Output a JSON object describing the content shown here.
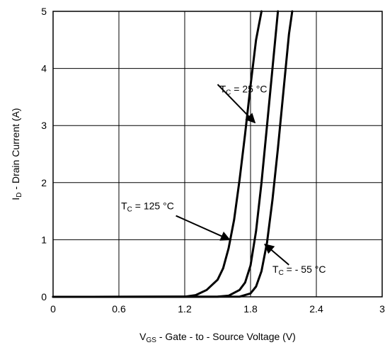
{
  "chart_data": {
    "type": "line",
    "xlim": [
      0,
      3
    ],
    "ylim": [
      0,
      5
    ],
    "x_ticks": [
      "0",
      "0.6",
      "1.2",
      "1.8",
      "2.4",
      "3"
    ],
    "y_ticks": [
      "0",
      "1",
      "2",
      "3",
      "4",
      "5"
    ],
    "grid": true,
    "xlabel": {
      "main": "V",
      "sub": "GS",
      "rest": " - Gate - to - Source Voltage (V)"
    },
    "ylabel": {
      "main": "I",
      "sub": "D",
      "rest": " - Drain Current (A)"
    },
    "series": [
      {
        "x": [
          0,
          1.2,
          1.3,
          1.4,
          1.5,
          1.55,
          1.6,
          1.65,
          1.7,
          1.75,
          1.8,
          1.85,
          1.9
        ],
        "y": [
          0,
          0.003,
          0.03,
          0.12,
          0.3,
          0.5,
          0.85,
          1.35,
          2.05,
          2.85,
          3.7,
          4.5,
          5.0
        ]
      },
      {
        "x": [
          0,
          1.5,
          1.6,
          1.7,
          1.75,
          1.8,
          1.85,
          1.9,
          1.95,
          2.0,
          2.05
        ],
        "y": [
          0,
          0.003,
          0.02,
          0.12,
          0.25,
          0.55,
          1.15,
          2.0,
          3.0,
          4.0,
          5.0
        ]
      },
      {
        "x": [
          0,
          1.7,
          1.8,
          1.85,
          1.9,
          1.95,
          2.0,
          2.05,
          2.1,
          2.15,
          2.18
        ],
        "y": [
          0,
          0.003,
          0.06,
          0.18,
          0.45,
          0.95,
          1.7,
          2.6,
          3.6,
          4.6,
          5.0
        ]
      }
    ],
    "annotations": [
      {
        "main": "T",
        "sub": "C",
        "rest": " = 25 °C",
        "text_at": [
          1.52,
          3.58
        ],
        "arrow_from": [
          1.5,
          3.72
        ],
        "arrow_to": [
          1.84,
          3.05
        ]
      },
      {
        "main": "T",
        "sub": "C",
        "rest": " = 125 °C",
        "text_at": [
          0.62,
          1.53
        ],
        "arrow_from": [
          1.12,
          1.42
        ],
        "arrow_to": [
          1.61,
          1.0
        ]
      },
      {
        "main": "T",
        "sub": "C",
        "rest": " = - 55 °C",
        "text_at": [
          2.0,
          0.42
        ],
        "arrow_from": [
          2.15,
          0.56
        ],
        "arrow_to": [
          1.93,
          0.92
        ]
      }
    ]
  }
}
